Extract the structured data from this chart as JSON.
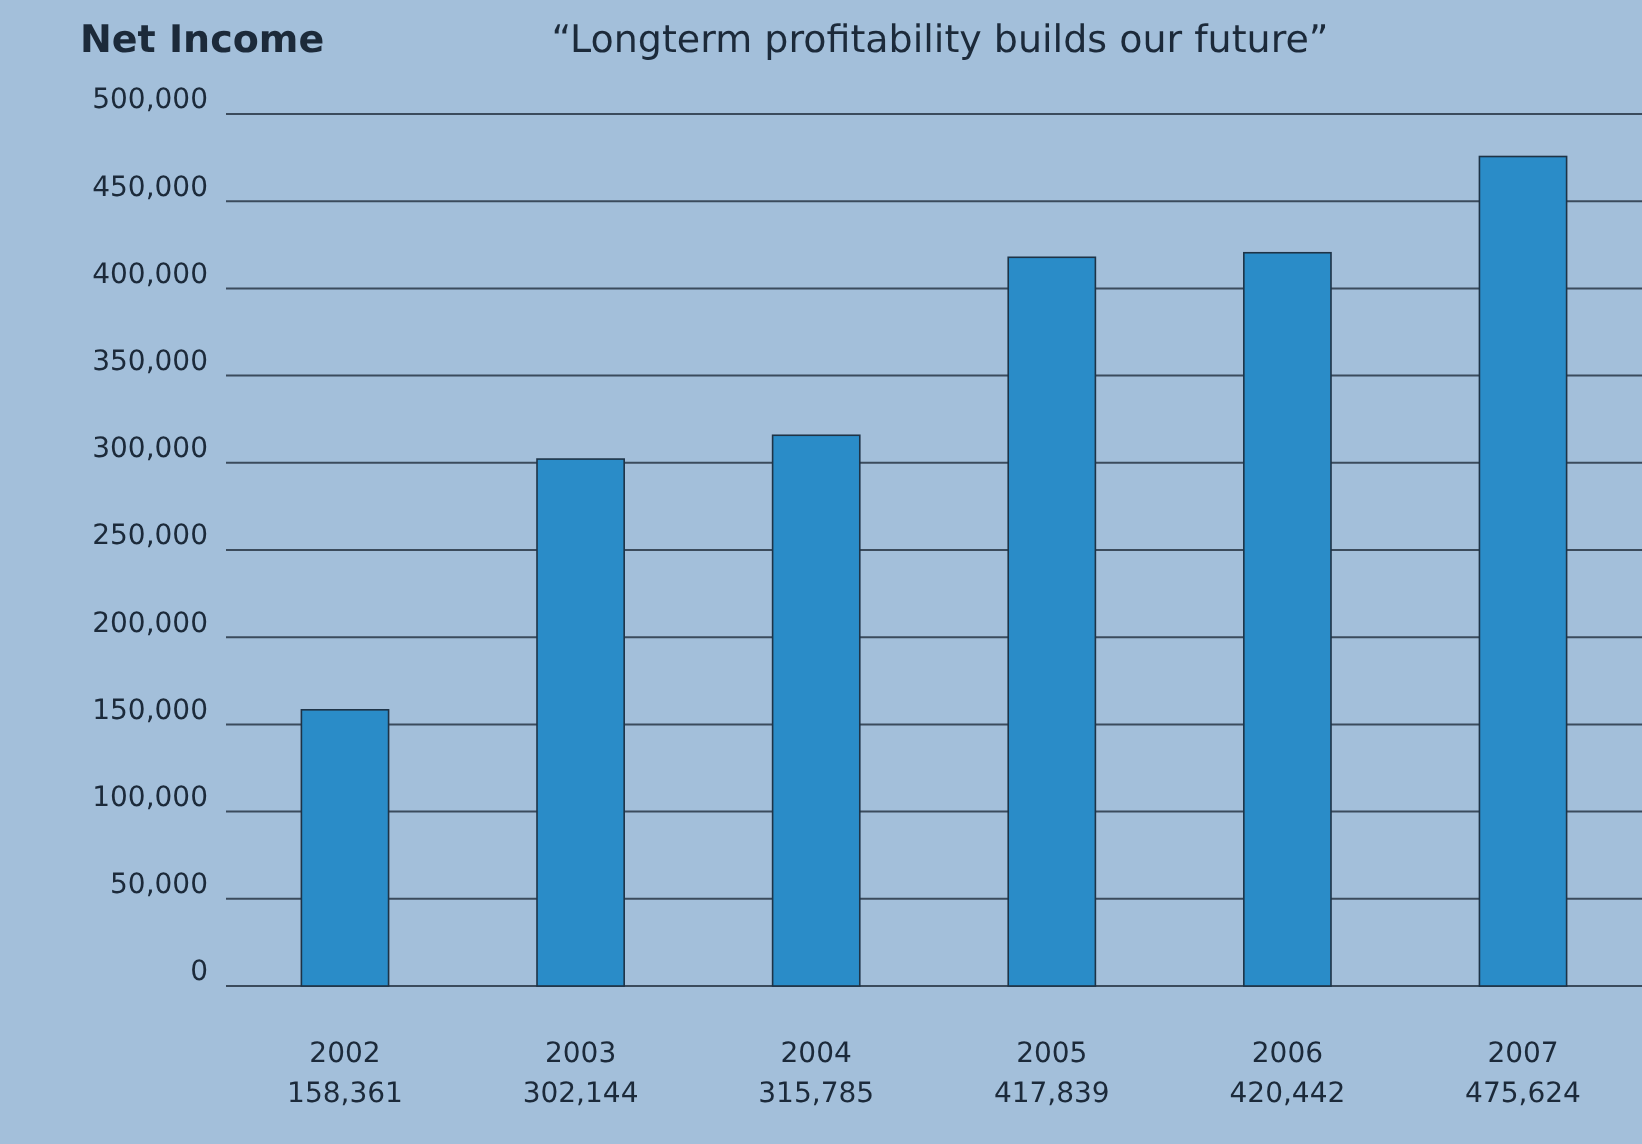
{
  "chart_data": {
    "type": "bar",
    "title": "Net Income",
    "subtitle": "“Longterm profitability builds our future”",
    "categories": [
      "2002",
      "2003",
      "2004",
      "2005",
      "2006",
      "2007"
    ],
    "values": [
      158361,
      302144,
      315785,
      417839,
      420442,
      475624
    ],
    "value_labels": [
      "158,361",
      "302,144",
      "315,785",
      "417,839",
      "420,442",
      "475,624"
    ],
    "color": "#2a8cc8",
    "ylim": [
      0,
      500000
    ],
    "yticks": [
      {
        "value": 0,
        "label": "0"
      },
      {
        "value": 50000,
        "label": "50,000"
      },
      {
        "value": 100000,
        "label": "100,000"
      },
      {
        "value": 150000,
        "label": "150,000"
      },
      {
        "value": 200000,
        "label": "200,000"
      },
      {
        "value": 250000,
        "label": "250,000"
      },
      {
        "value": 300000,
        "label": "300,000"
      },
      {
        "value": 350000,
        "label": "350,000"
      },
      {
        "value": 400000,
        "label": "400,000"
      },
      {
        "value": 450000,
        "label": "450,000"
      },
      {
        "value": 500000,
        "label": "500,000"
      }
    ],
    "grid": "y"
  }
}
